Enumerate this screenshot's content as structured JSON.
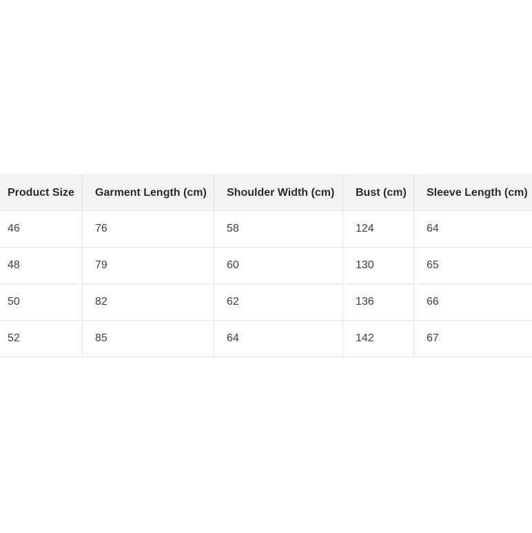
{
  "table": {
    "name": "product-size-chart",
    "columns": [
      "Product Size",
      "Garment Length (cm)",
      "Shoulder Width (cm)",
      "Bust (cm)",
      "Sleeve Length (cm)"
    ],
    "rows": [
      [
        "46",
        "76",
        "58",
        "124",
        "64"
      ],
      [
        "48",
        "79",
        "60",
        "130",
        "65"
      ],
      [
        "50",
        "82",
        "62",
        "136",
        "66"
      ],
      [
        "52",
        "85",
        "64",
        "142",
        "67"
      ]
    ]
  },
  "colors": {
    "page_bg": "#ffffff",
    "header_bg": "#f4f4f4",
    "border": "#e6e6e6",
    "header_text": "#2b2b2b",
    "cell_text": "#404040"
  }
}
